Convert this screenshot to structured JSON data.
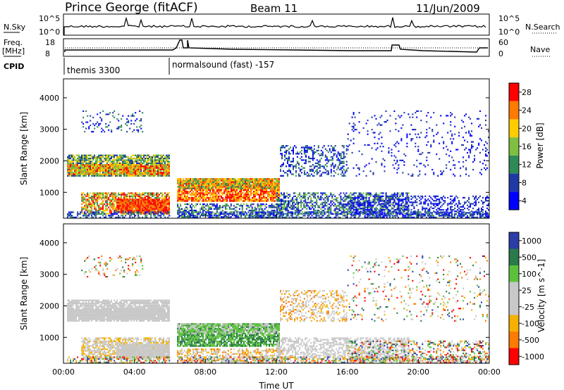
{
  "header": {
    "station": "Prince George (fitACF)",
    "beam": "Beam 11",
    "date": "11/Jun/2009"
  },
  "sky_panel": {
    "left_label": "N.Sky",
    "left_ticks": [
      "10^5",
      "10^0"
    ],
    "right_label": "N.Search",
    "right_ticks": [
      "10^5",
      "10^0"
    ]
  },
  "freq_panel": {
    "left_label_1": "Freq.",
    "left_label_2": "[MHz]",
    "left_ticks": [
      "18",
      "8"
    ],
    "right_label": "Nave",
    "right_ticks": [
      "60",
      "0"
    ]
  },
  "cpid_panel": {
    "label": "CPID",
    "segments": [
      "themis 3300",
      "normalsound (fast) -157"
    ]
  },
  "chart_data": [
    {
      "type": "heatmap",
      "title": "Power",
      "ylabel": "Slant Range [km]",
      "xlabel": "",
      "y_ticks": [
        "1000",
        "2000",
        "3000",
        "4000"
      ],
      "ylim": [
        180,
        4600
      ],
      "x_ticks": [
        "00:00",
        "04:00",
        "08:00",
        "12:00",
        "16:00",
        "20:00",
        "00:00"
      ],
      "xlim_hours": [
        0,
        24
      ],
      "colorbar_label": "Power [dB]",
      "colorbar_ticks": [
        "28",
        "24",
        "20",
        "16",
        "12",
        "8",
        "4"
      ],
      "colors": [
        "#ff0000",
        "#ff7a00",
        "#ffcc00",
        "#7fbf3f",
        "#2e8b57",
        "#1f3aa5",
        "#0000ff"
      ],
      "grid": false
    },
    {
      "type": "heatmap",
      "title": "Velocity",
      "ylabel": "Slant Range [km]",
      "xlabel": "Time UT",
      "y_ticks": [
        "1000",
        "2000",
        "3000",
        "4000"
      ],
      "ylim": [
        180,
        4600
      ],
      "x_ticks": [
        "00:00",
        "04:00",
        "08:00",
        "12:00",
        "16:00",
        "20:00",
        "00:00"
      ],
      "xlim_hours": [
        0,
        24
      ],
      "colorbar_label": "Velocity [m s^-1]",
      "colorbar_ticks": [
        "1000",
        "500",
        "100",
        "25",
        "-25",
        "-100",
        "-500",
        "-1000"
      ],
      "colors": [
        "#2b3ea8",
        "#2a7a4a",
        "#5cc23c",
        "#c8c8c8",
        "#c8c8c8",
        "#f5b000",
        "#ff7a00",
        "#ff0000"
      ],
      "grid": false
    }
  ]
}
